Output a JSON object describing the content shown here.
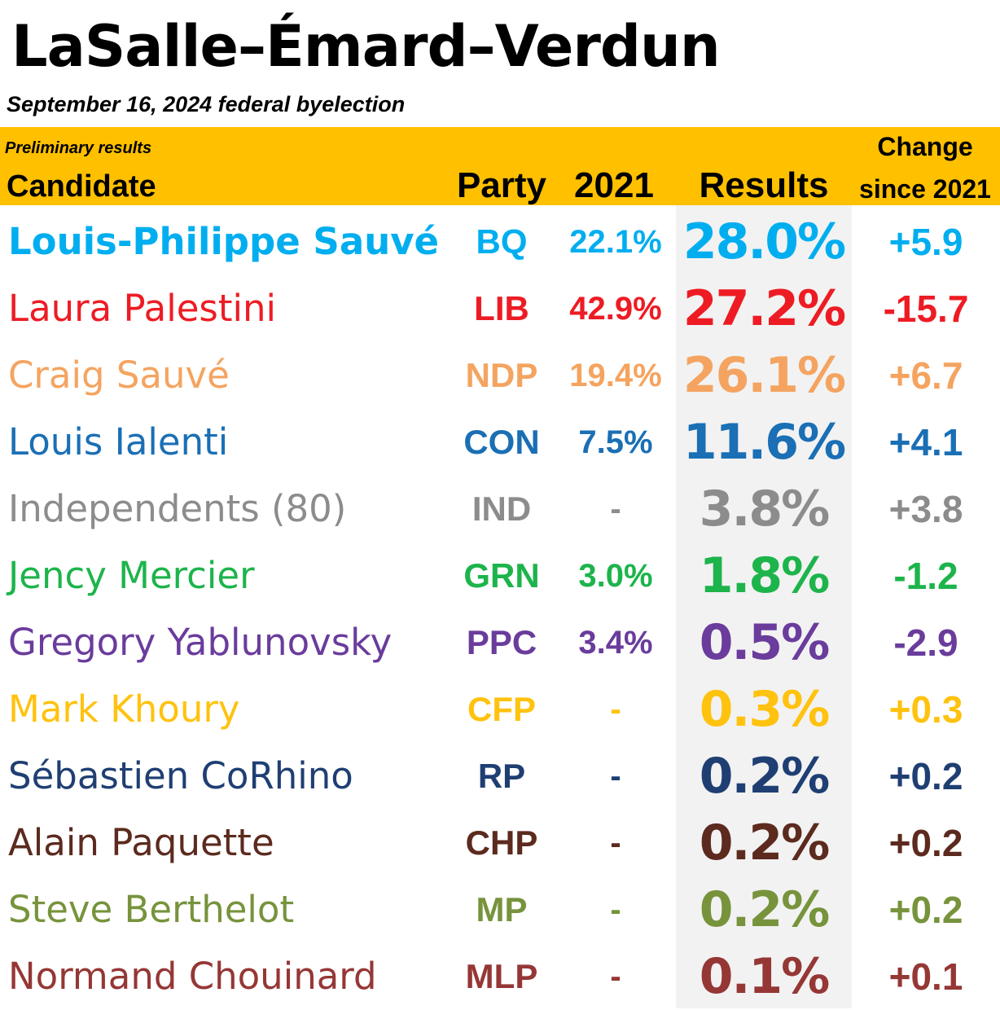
{
  "title": "LaSalle–Émard–Verdun",
  "subtitle": "September 16, 2024 federal byelection",
  "header": {
    "note": "Preliminary results",
    "candidate": "Candidate",
    "party": "Party",
    "prev_year": "2021",
    "results": "Results",
    "change_line1": "Change",
    "change_line2": "since 2021"
  },
  "chart_data": {
    "type": "table",
    "columns": [
      "Candidate",
      "Party",
      "2021",
      "Results",
      "Change since 2021"
    ],
    "rows": [
      {
        "candidate": "Louis-Philippe Sauvé",
        "party": "BQ",
        "prev": "22.1%",
        "result": "28.0%",
        "change": "+5.9",
        "color": "#00aeef"
      },
      {
        "candidate": "Laura Palestini",
        "party": "LIB",
        "prev": "42.9%",
        "result": "27.2%",
        "change": "-15.7",
        "color": "#ed1c24"
      },
      {
        "candidate": "Craig Sauvé",
        "party": "NDP",
        "prev": "19.4%",
        "result": "26.1%",
        "change": "+6.7",
        "color": "#f4a460"
      },
      {
        "candidate": "Louis Ialenti",
        "party": "CON",
        "prev": "7.5%",
        "result": "11.6%",
        "change": "+4.1",
        "color": "#1a6fb5"
      },
      {
        "candidate": "Independents (80)",
        "party": "IND",
        "prev": "-",
        "result": "3.8%",
        "change": "+3.8",
        "color": "#8c8c8c"
      },
      {
        "candidate": "Jency Mercier",
        "party": "GRN",
        "prev": "3.0%",
        "result": "1.8%",
        "change": "-1.2",
        "color": "#1db44b"
      },
      {
        "candidate": "Gregory Yablunovsky",
        "party": "PPC",
        "prev": "3.4%",
        "result": "0.5%",
        "change": "-2.9",
        "color": "#6a3c9c"
      },
      {
        "candidate": "Mark Khoury",
        "party": "CFP",
        "prev": "-",
        "result": "0.3%",
        "change": "+0.3",
        "color": "#ffc20e"
      },
      {
        "candidate": "Sébastien CoRhino",
        "party": "RP",
        "prev": "-",
        "result": "0.2%",
        "change": "+0.2",
        "color": "#1f3f73"
      },
      {
        "candidate": "Alain Paquette",
        "party": "CHP",
        "prev": "-",
        "result": "0.2%",
        "change": "+0.2",
        "color": "#5c2a1e"
      },
      {
        "candidate": "Steve Berthelot",
        "party": "MP",
        "prev": "-",
        "result": "0.2%",
        "change": "+0.2",
        "color": "#77933c"
      },
      {
        "candidate": "Normand Chouinard",
        "party": "MLP",
        "prev": "-",
        "result": "0.1%",
        "change": "+0.1",
        "color": "#953735"
      }
    ]
  },
  "colors": {
    "header_band": "#ffc000",
    "results_column_bg": "#f2f2f2"
  }
}
